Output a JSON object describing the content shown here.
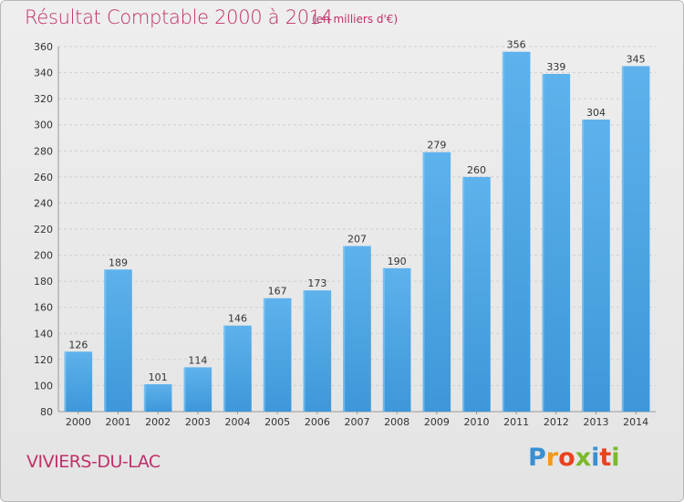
{
  "header": {
    "title": "Résultat Comptable 2000 à 2014",
    "subtitle": "(en milliers d'€)"
  },
  "footer": {
    "commune": "VIVIERS-DU-LAC",
    "logo_letters": [
      "P",
      "r",
      "o",
      "x",
      "i",
      "t",
      "i"
    ],
    "logo_colors": [
      "#3a8fd1",
      "#f39a1a",
      "#e8421f",
      "#7bb82c",
      "#3a8fd1",
      "#e8421f",
      "#7bb82c"
    ]
  },
  "chart_data": {
    "type": "bar",
    "title": "Résultat Comptable 2000 à 2014",
    "subtitle": "(en milliers d'€)",
    "categories": [
      "2000",
      "2001",
      "2002",
      "2003",
      "2004",
      "2005",
      "2006",
      "2007",
      "2008",
      "2009",
      "2010",
      "2011",
      "2012",
      "2013",
      "2014"
    ],
    "values": [
      126,
      189,
      101,
      114,
      146,
      167,
      173,
      207,
      190,
      279,
      260,
      356,
      339,
      304,
      345
    ],
    "xlabel": "",
    "ylabel": "",
    "ylim": [
      80,
      360
    ],
    "yticks": [
      80,
      100,
      120,
      140,
      160,
      180,
      200,
      220,
      240,
      260,
      280,
      300,
      320,
      340,
      360
    ],
    "grid": true,
    "bar_color": "#3d97d9",
    "bar_color_light": "#5eb2ec"
  }
}
